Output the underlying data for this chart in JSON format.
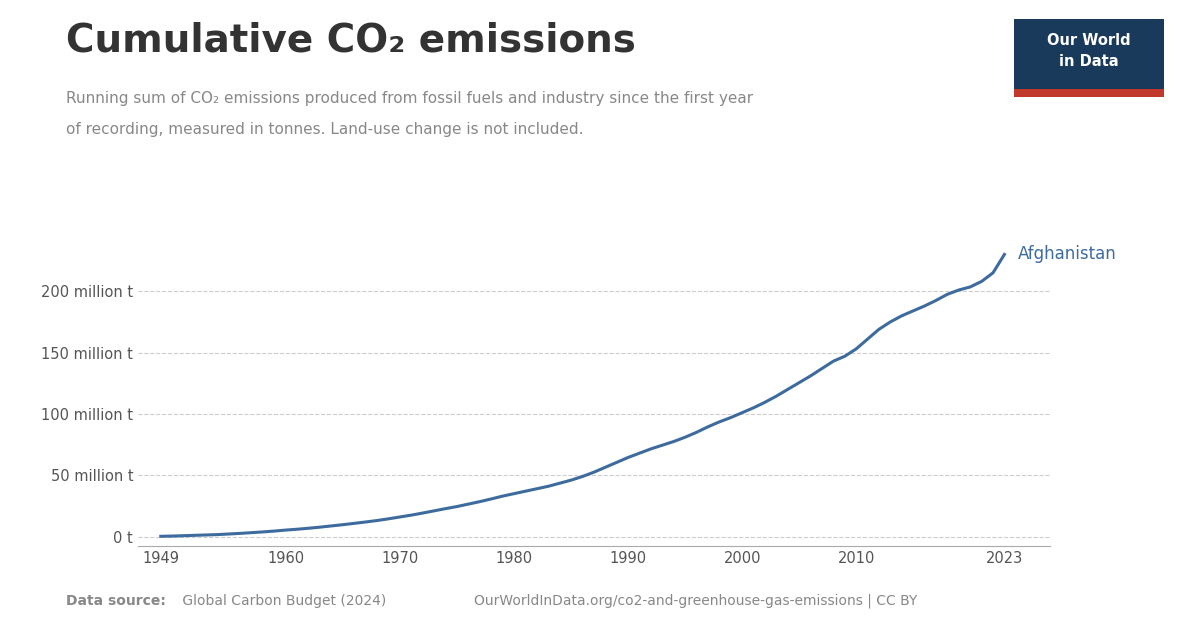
{
  "title": "Cumulative CO₂ emissions",
  "subtitle_line1": "Running sum of CO₂ emissions produced from fossil fuels and industry since the first year",
  "subtitle_line2": "of recording, measured in tonnes. Land-use change is not included.",
  "line_color": "#3d6b9e",
  "line_label": "Afghanistan",
  "background_color": "#ffffff",
  "grid_color": "#cccccc",
  "title_color": "#333333",
  "subtitle_color": "#888888",
  "footer_color": "#888888",
  "data_source_bold": "Data source:",
  "data_source_name": " Global Carbon Budget (2024)   ",
  "data_source_url": "OurWorldInData.org/co2-and-greenhouse-gas-emissions | CC BY",
  "owid_box_color": "#1a3a5c",
  "owid_red_color": "#c0392b",
  "years": [
    1949,
    1950,
    1951,
    1952,
    1953,
    1954,
    1955,
    1956,
    1957,
    1958,
    1959,
    1960,
    1961,
    1962,
    1963,
    1964,
    1965,
    1966,
    1967,
    1968,
    1969,
    1970,
    1971,
    1972,
    1973,
    1974,
    1975,
    1976,
    1977,
    1978,
    1979,
    1980,
    1981,
    1982,
    1983,
    1984,
    1985,
    1986,
    1987,
    1988,
    1989,
    1990,
    1991,
    1992,
    1993,
    1994,
    1995,
    1996,
    1997,
    1998,
    1999,
    2000,
    2001,
    2002,
    2003,
    2004,
    2005,
    2006,
    2007,
    2008,
    2009,
    2010,
    2011,
    2012,
    2013,
    2014,
    2015,
    2016,
    2017,
    2018,
    2019,
    2020,
    2021,
    2022,
    2023
  ],
  "values": [
    0.2,
    0.4,
    0.7,
    1.0,
    1.3,
    1.6,
    2.1,
    2.6,
    3.2,
    3.8,
    4.5,
    5.3,
    6.0,
    6.8,
    7.7,
    8.7,
    9.7,
    10.8,
    11.9,
    13.1,
    14.5,
    16.0,
    17.5,
    19.2,
    21.0,
    22.8,
    24.5,
    26.5,
    28.5,
    30.7,
    33.0,
    35.0,
    37.0,
    39.0,
    41.0,
    43.5,
    46.0,
    49.0,
    52.5,
    56.5,
    60.5,
    64.5,
    68.0,
    71.5,
    74.5,
    77.5,
    81.0,
    85.0,
    89.5,
    93.5,
    97.0,
    101.0,
    105.0,
    109.5,
    114.5,
    120.0,
    125.5,
    131.0,
    137.0,
    143.0,
    147.0,
    153.0,
    161.0,
    169.0,
    175.0,
    180.0,
    184.0,
    188.0,
    192.5,
    197.5,
    201.0,
    203.5,
    208.0,
    215.0,
    230.0
  ],
  "yticks": [
    0,
    50,
    100,
    150,
    200
  ],
  "ytick_labels": [
    "0 t",
    "50 million t",
    "100 million t",
    "150 million t",
    "200 million t"
  ],
  "xticks": [
    1949,
    1960,
    1970,
    1980,
    1990,
    2000,
    2010,
    2023
  ],
  "ylim": [
    -8,
    248
  ],
  "xlim": [
    1947,
    2027
  ]
}
